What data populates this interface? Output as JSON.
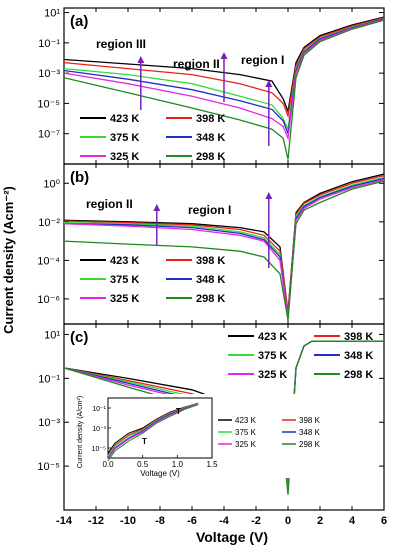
{
  "colors": {
    "423 K": "#000000",
    "398 K": "#e8221a",
    "375 K": "#33dd33",
    "348 K": "#1f2fc8",
    "325 K": "#e826e8",
    "298 K": "#1e8a1e",
    "arrow": "#7a22b8"
  },
  "shared": {
    "ylabel": "Current density (Acm⁻²)",
    "xlabel": "Voltage (V)",
    "xticks": [
      "-14",
      "-12",
      "-10",
      "-8",
      "-6",
      "-4",
      "-2",
      "0",
      "2",
      "4",
      "6"
    ],
    "xlim": [
      -14,
      6
    ]
  },
  "chart_data": [
    {
      "type": "line",
      "panel": "(a)",
      "ylog": true,
      "ylim": [
        1e-09,
        20
      ],
      "yticks": [
        "10¹",
        "10⁻¹",
        "10⁻³",
        "10⁻⁵",
        "10⁻⁷"
      ],
      "annotations": [
        "region III",
        "region II",
        "region I"
      ],
      "legend": [
        "423 K",
        "398 K",
        "375 K",
        "348 K",
        "325 K",
        "298 K"
      ],
      "series": [
        {
          "name": "423 K",
          "x": [
            -14,
            -10,
            -6,
            -3,
            -1,
            -0.3,
            0,
            0.5,
            1,
            2,
            4,
            6
          ],
          "y": [
            0.008,
            0.004,
            0.002,
            0.0008,
            0.0003,
            2e-05,
            3e-06,
            0.005,
            0.05,
            0.3,
            1.5,
            5
          ]
        },
        {
          "name": "398 K",
          "x": [
            -14,
            -10,
            -6,
            -3,
            -1,
            -0.3,
            0,
            0.5,
            1,
            2,
            4,
            6
          ],
          "y": [
            0.005,
            0.002,
            0.0008,
            0.0002,
            5e-05,
            1e-05,
            1.5e-06,
            0.003,
            0.04,
            0.25,
            1.3,
            4.5
          ]
        },
        {
          "name": "375 K",
          "x": [
            -14,
            -10,
            -6,
            -3,
            -1,
            -0.3,
            0,
            0.5,
            1,
            2,
            4,
            6
          ],
          "y": [
            0.002,
            0.0008,
            0.0002,
            3e-05,
            8e-06,
            1e-06,
            2e-07,
            0.002,
            0.03,
            0.2,
            1.1,
            4
          ]
        },
        {
          "name": "348 K",
          "x": [
            -14,
            -10,
            -6,
            -3,
            -1,
            -0.3,
            0,
            0.5,
            1,
            2,
            4,
            6
          ],
          "y": [
            0.0015,
            0.0004,
            8e-05,
            1.5e-05,
            4e-06,
            7e-07,
            1e-07,
            0.0015,
            0.025,
            0.18,
            1,
            3.8
          ]
        },
        {
          "name": "325 K",
          "x": [
            -14,
            -10,
            -6,
            -3,
            -1,
            -0.3,
            0,
            0.5,
            1,
            2,
            4,
            6
          ],
          "y": [
            0.001,
            0.0002,
            3e-05,
            5e-06,
            1e-06,
            3e-07,
            5e-08,
            0.001,
            0.02,
            0.15,
            0.9,
            3.5
          ]
        },
        {
          "name": "298 K",
          "x": [
            -14,
            -10,
            -6,
            -3,
            -1,
            -0.3,
            0,
            0.5,
            1,
            2,
            4,
            6
          ],
          "y": [
            0.0005,
            5e-05,
            5e-06,
            8e-07,
            2e-07,
            5e-08,
            2e-09,
            0.0005,
            0.015,
            0.12,
            0.8,
            3.2
          ]
        }
      ]
    },
    {
      "type": "line",
      "panel": "(b)",
      "ylog": true,
      "ylim": [
        5e-08,
        10
      ],
      "yticks": [
        "10⁰",
        "10⁻²",
        "10⁻⁴",
        "10⁻⁶"
      ],
      "annotations": [
        "region II",
        "region I"
      ],
      "legend": [
        "423 K",
        "398 K",
        "375 K",
        "348 K",
        "325 K",
        "298 K"
      ],
      "series": [
        {
          "name": "423 K",
          "x": [
            -14,
            -10,
            -6,
            -3,
            -1.5,
            -0.5,
            0,
            0.5,
            1,
            2,
            4,
            6
          ],
          "y": [
            0.012,
            0.01,
            0.008,
            0.005,
            0.003,
            0.0005,
            2e-07,
            0.03,
            0.1,
            0.3,
            1.2,
            3
          ]
        },
        {
          "name": "398 K",
          "x": [
            -14,
            -10,
            -6,
            -3,
            -1.5,
            -0.5,
            0,
            0.5,
            1,
            2,
            4,
            6
          ],
          "y": [
            0.011,
            0.009,
            0.007,
            0.004,
            0.002,
            0.0003,
            2e-07,
            0.025,
            0.09,
            0.25,
            1,
            2.5
          ]
        },
        {
          "name": "375 K",
          "x": [
            -14,
            -10,
            -6,
            -3,
            -1.5,
            -0.5,
            0,
            0.5,
            1,
            2,
            4,
            6
          ],
          "y": [
            0.009,
            0.008,
            0.006,
            0.003,
            0.0015,
            0.0002,
            1e-07,
            0.02,
            0.07,
            0.2,
            0.8,
            2
          ]
        },
        {
          "name": "348 K",
          "x": [
            -14,
            -10,
            -6,
            -3,
            -1.5,
            -0.5,
            0,
            0.5,
            1,
            2,
            4,
            6
          ],
          "y": [
            0.008,
            0.007,
            0.005,
            0.0025,
            0.0012,
            0.00015,
            1e-07,
            0.015,
            0.06,
            0.18,
            0.7,
            1.8
          ]
        },
        {
          "name": "325 K",
          "x": [
            -14,
            -10,
            -6,
            -3,
            -1.5,
            -0.5,
            0,
            0.5,
            1,
            2,
            4,
            6
          ],
          "y": [
            0.008,
            0.006,
            0.004,
            0.002,
            0.001,
            0.0001,
            1e-07,
            0.012,
            0.05,
            0.15,
            0.6,
            1.5
          ]
        },
        {
          "name": "298 K",
          "x": [
            -14,
            -10,
            -6,
            -3,
            -1.5,
            -0.5,
            0,
            0.5,
            1,
            2,
            4,
            6
          ],
          "y": [
            0.001,
            0.0007,
            0.0005,
            0.0003,
            0.00015,
            2e-05,
            8e-08,
            0.008,
            0.04,
            0.1,
            0.5,
            1.3
          ]
        }
      ]
    },
    {
      "type": "line",
      "panel": "(c)",
      "ylog": true,
      "ylim": [
        1e-07,
        30
      ],
      "yticks": [
        "10¹",
        "10⁻¹",
        "10⁻³",
        "10⁻⁵"
      ],
      "legend": [
        "423 K",
        "398 K",
        "375 K",
        "348 K",
        "325 K",
        "298 K"
      ],
      "series": [
        {
          "name": "423 K",
          "x": [
            -14,
            -10,
            -6,
            -3,
            -1,
            -0.3,
            0,
            0.5,
            1,
            1.5,
            6
          ],
          "y": [
            0.3,
            0.1,
            0.03,
            0.005,
            0.0005,
            5e-05,
            1e-06,
            0.3,
            3,
            5,
            5
          ]
        },
        {
          "name": "398 K",
          "x": [
            -14,
            -10,
            -6,
            -3,
            -1,
            -0.3,
            0,
            0.5,
            1,
            1.5,
            6
          ],
          "y": [
            0.3,
            0.08,
            0.02,
            0.004,
            0.001,
            0.0002,
            1e-06,
            0.3,
            3,
            5,
            5
          ]
        },
        {
          "name": "375 K",
          "x": [
            -14,
            -10,
            -6,
            -3,
            -1,
            -0.3,
            0,
            0.5,
            1,
            1.5,
            6
          ],
          "y": [
            0.3,
            0.07,
            0.015,
            0.003,
            0.0008,
            0.0002,
            1e-06,
            0.3,
            3,
            5,
            5
          ]
        },
        {
          "name": "348 K",
          "x": [
            -14,
            -10,
            -6,
            -3,
            -1,
            -0.3,
            0,
            0.5,
            1,
            1.5,
            6
          ],
          "y": [
            0.3,
            0.06,
            0.012,
            0.0025,
            0.0007,
            0.0002,
            1e-06,
            0.3,
            3,
            5,
            5
          ]
        },
        {
          "name": "325 K",
          "x": [
            -14,
            -10,
            -6,
            -3,
            -1,
            -0.3,
            0,
            0.5,
            1,
            1.5,
            6
          ],
          "y": [
            0.3,
            0.05,
            0.01,
            0.002,
            0.0006,
            0.0002,
            1e-06,
            0.3,
            3,
            5,
            5
          ]
        },
        {
          "name": "298 K",
          "x": [
            -14,
            -10,
            -6,
            -3,
            -1,
            -0.3,
            0,
            0.5,
            1,
            1.5,
            6
          ],
          "y": [
            0.3,
            0.04,
            0.006,
            0.001,
            0.0004,
            0.0001,
            5e-07,
            0.3,
            3,
            5,
            5
          ]
        }
      ]
    },
    {
      "type": "line",
      "panel": "(c) inset",
      "ylog": true,
      "xlim": [
        0,
        1.5
      ],
      "ylim": [
        1e-06,
        1
      ],
      "xticks": [
        "0.0",
        "0.5",
        "1.0",
        "1.5"
      ],
      "yticks": [
        "10⁻¹",
        "10⁻³",
        "10⁻⁵"
      ],
      "xlabel": "Voltage (V)",
      "ylabel": "Current density (A/cm²)",
      "annotations": [
        "T",
        "T"
      ],
      "legend": [
        "423 K",
        "398 K",
        "375 K",
        "348 K",
        "325 K",
        "298 K"
      ],
      "series": [
        {
          "name": "423 K",
          "x": [
            0,
            0.1,
            0.3,
            0.5,
            0.7,
            0.9,
            1.1,
            1.3
          ],
          "y": [
            3e-06,
            3e-05,
            0.0003,
            0.001,
            0.008,
            0.04,
            0.12,
            0.3
          ]
        },
        {
          "name": "398 K",
          "x": [
            0,
            0.1,
            0.3,
            0.5,
            0.7,
            0.9,
            1.1,
            1.3
          ],
          "y": [
            2e-06,
            2e-05,
            0.0002,
            0.0008,
            0.007,
            0.035,
            0.11,
            0.3
          ]
        },
        {
          "name": "375 K",
          "x": [
            0,
            0.1,
            0.3,
            0.5,
            0.7,
            0.9,
            1.1,
            1.3
          ],
          "y": [
            1.5e-06,
            1.5e-05,
            0.00015,
            0.0006,
            0.006,
            0.03,
            0.1,
            0.28
          ]
        },
        {
          "name": "348 K",
          "x": [
            0,
            0.1,
            0.3,
            0.5,
            0.7,
            0.9,
            1.1,
            1.3
          ],
          "y": [
            1e-06,
            1e-05,
            0.0001,
            0.0005,
            0.005,
            0.025,
            0.09,
            0.27
          ]
        },
        {
          "name": "325 K",
          "x": [
            0,
            0.1,
            0.3,
            0.5,
            0.7,
            0.9,
            1.1,
            1.3
          ],
          "y": [
            8e-07,
            8e-06,
            8e-05,
            0.0004,
            0.004,
            0.02,
            0.08,
            0.25
          ]
        },
        {
          "name": "298 K",
          "x": [
            0,
            0.1,
            0.3,
            0.5,
            0.7,
            0.9,
            1.1,
            1.3
          ],
          "y": [
            5e-07,
            5e-06,
            5e-05,
            0.0003,
            0.003,
            0.015,
            0.07,
            0.22
          ]
        }
      ]
    }
  ]
}
